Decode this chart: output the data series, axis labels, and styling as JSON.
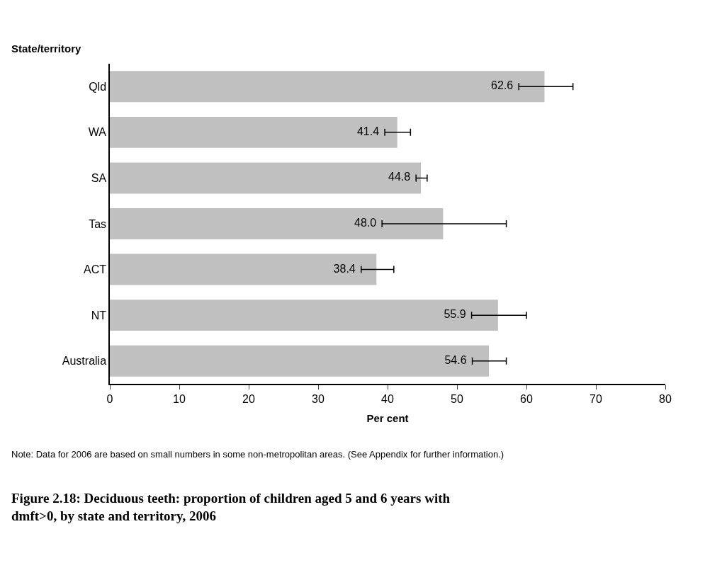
{
  "chart_data": {
    "type": "bar",
    "orientation": "horizontal",
    "title": "Figure 2.18: Deciduous teeth: proportion of children aged 5 and 6 years with dmft>0, by state and territory, 2006",
    "xlabel": "Per cent",
    "ylabel": "State/territory",
    "categories": [
      "Qld",
      "WA",
      "SA",
      "Tas",
      "ACT",
      "NT",
      "Australia"
    ],
    "values": [
      62.6,
      41.4,
      44.8,
      48.0,
      38.4,
      55.9,
      54.6
    ],
    "errors": [
      [
        58.9,
        66.7
      ],
      [
        39.6,
        43.3
      ],
      [
        44.1,
        45.7
      ],
      [
        39.2,
        57.1
      ],
      [
        36.2,
        40.9
      ],
      [
        52.1,
        60.0
      ],
      [
        52.2,
        57.1
      ]
    ],
    "color": "#c0c0c0",
    "value_labels": [
      "62.6",
      "41.4",
      "44.8",
      "48.0",
      "38.4",
      "55.9",
      "54.6"
    ],
    "xlim": [
      0,
      80
    ],
    "xticks": [
      0,
      10,
      20,
      30,
      40,
      50,
      60,
      70,
      80
    ],
    "annotations": [
      "Note: Data for 2006 are based on small numbers in some non-metropolitan areas. (See Appendix for further information.)"
    ]
  }
}
